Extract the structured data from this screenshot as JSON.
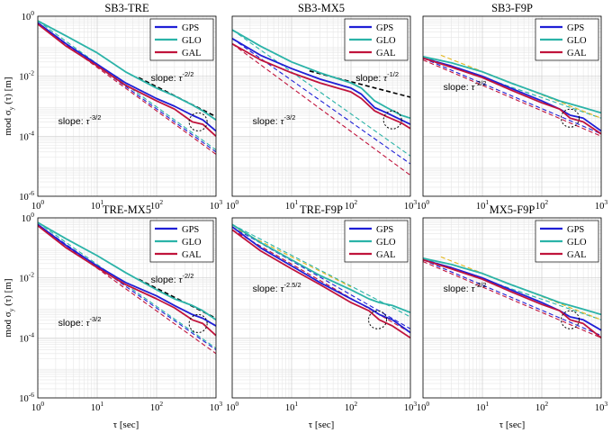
{
  "figure": {
    "tick_labels": {
      "base": "10",
      "y_exponents": [
        "0",
        "-2",
        "-4",
        "-6"
      ],
      "x_exponents": [
        "0",
        "1",
        "2",
        "3"
      ]
    },
    "ylabel": {
      "prefix": "mod ",
      "sigma": "σ",
      "sub": "y",
      "suffix": " (τ) [m]"
    },
    "xlabel": "τ [sec]",
    "legend": [
      "GPS",
      "GLO",
      "GAL"
    ],
    "colors": {
      "GPS": "#1f1fd6",
      "GLO": "#2bb3a8",
      "GAL": "#c0143c",
      "ref": "#e3b820",
      "slope_ref": "#000000"
    }
  },
  "chart_data": [
    {
      "type": "line",
      "title": "SB3-TRE",
      "xscale": "log",
      "yscale": "log",
      "xlim": [
        1,
        1000
      ],
      "ylim": [
        1e-06,
        1
      ],
      "grid": true,
      "legend_position": "top-right",
      "series": [
        {
          "name": "GPS",
          "x": [
            1,
            3,
            10,
            30,
            100,
            200,
            400,
            600,
            1000
          ],
          "y": [
            0.6,
            0.12,
            0.025,
            0.006,
            0.0018,
            0.001,
            0.0005,
            0.00035,
            0.00015
          ]
        },
        {
          "name": "GLO",
          "x": [
            1,
            3,
            10,
            30,
            100,
            200,
            400,
            600,
            1000
          ],
          "y": [
            0.7,
            0.22,
            0.06,
            0.014,
            0.004,
            0.0022,
            0.0011,
            0.0007,
            0.00035
          ]
        },
        {
          "name": "GAL",
          "x": [
            1,
            3,
            10,
            30,
            100,
            200,
            400,
            600,
            1000
          ],
          "y": [
            0.55,
            0.1,
            0.022,
            0.005,
            0.0015,
            0.0008,
            0.0003,
            0.00025,
            0.0001
          ]
        }
      ],
      "fits": [
        {
          "color": "GPS",
          "from": [
            1,
            0.6
          ],
          "to": [
            1000,
            3e-05
          ]
        },
        {
          "color": "GLO",
          "from": [
            1,
            0.7
          ],
          "to": [
            1000,
            3.5e-05
          ]
        },
        {
          "color": "GAL",
          "from": [
            1,
            0.55
          ],
          "to": [
            1000,
            2.5e-05
          ]
        },
        {
          "color": "slope_ref",
          "from": [
            50,
            0.009
          ],
          "to": [
            1000,
            0.00045
          ]
        }
      ],
      "annotations": [
        {
          "text": "slope: ",
          "base": "τ",
          "exp": "-2/2",
          "at": [
            80,
            0.007
          ]
        },
        {
          "text": "slope: ",
          "base": "τ",
          "exp": "-3/2",
          "at": [
            2.2,
            0.00025
          ]
        }
      ],
      "circle": [
        500,
        0.0003
      ]
    },
    {
      "type": "line",
      "title": "SB3-MX5",
      "xscale": "log",
      "yscale": "log",
      "xlim": [
        1,
        1000
      ],
      "ylim": [
        1e-06,
        1
      ],
      "grid": true,
      "legend_position": "top-right",
      "series": [
        {
          "name": "GPS",
          "x": [
            1,
            3,
            10,
            30,
            100,
            150,
            250,
            400,
            700,
            1000
          ],
          "y": [
            0.18,
            0.05,
            0.018,
            0.008,
            0.004,
            0.0025,
            0.0009,
            0.0006,
            0.00035,
            0.00025
          ]
        },
        {
          "name": "GLO",
          "x": [
            1,
            3,
            10,
            30,
            100,
            150,
            250,
            400,
            700,
            1000
          ],
          "y": [
            0.35,
            0.1,
            0.03,
            0.013,
            0.006,
            0.004,
            0.0015,
            0.0009,
            0.0005,
            0.0004
          ]
        },
        {
          "name": "GAL",
          "x": [
            1,
            3,
            10,
            30,
            100,
            150,
            250,
            400,
            700,
            1000
          ],
          "y": [
            0.12,
            0.035,
            0.013,
            0.006,
            0.003,
            0.0018,
            0.0007,
            0.00045,
            0.00028,
            0.00018
          ]
        }
      ],
      "fits": [
        {
          "color": "GPS",
          "from": [
            1,
            0.18
          ],
          "to": [
            1000,
            1.2e-05
          ]
        },
        {
          "color": "GLO",
          "from": [
            1,
            0.35
          ],
          "to": [
            1000,
            2.2e-05
          ]
        },
        {
          "color": "GAL",
          "from": [
            1,
            0.12
          ],
          "to": [
            1000,
            5e-06
          ]
        },
        {
          "color": "slope_ref",
          "from": [
            20,
            0.015
          ],
          "to": [
            1000,
            0.002
          ]
        }
      ],
      "annotations": [
        {
          "text": "slope: ",
          "base": "τ",
          "exp": "-1/2",
          "at": [
            120,
            0.007
          ]
        },
        {
          "text": "slope: ",
          "base": "τ",
          "exp": "-3/2",
          "at": [
            2.2,
            0.00025
          ]
        }
      ],
      "circle": [
        500,
        0.00035
      ]
    },
    {
      "type": "line",
      "title": "SB3-F9P",
      "xscale": "log",
      "yscale": "log",
      "xlim": [
        1,
        1000
      ],
      "ylim": [
        1e-06,
        1
      ],
      "grid": true,
      "legend_position": "top-right",
      "series": [
        {
          "name": "GPS",
          "x": [
            1,
            3,
            10,
            30,
            100,
            200,
            300,
            500,
            1000
          ],
          "y": [
            0.04,
            0.022,
            0.01,
            0.004,
            0.0015,
            0.0008,
            0.0005,
            0.0004,
            0.00015
          ]
        },
        {
          "name": "GLO",
          "x": [
            1,
            3,
            10,
            30,
            100,
            200,
            300,
            500,
            1000
          ],
          "y": [
            0.045,
            0.028,
            0.014,
            0.006,
            0.0025,
            0.0015,
            0.0012,
            0.0009,
            0.0006
          ]
        },
        {
          "name": "GAL",
          "x": [
            1,
            3,
            10,
            30,
            100,
            200,
            300,
            500,
            1000
          ],
          "y": [
            0.04,
            0.02,
            0.009,
            0.0035,
            0.0013,
            0.0008,
            0.0004,
            0.0003,
            0.00012
          ]
        }
      ],
      "fits": [
        {
          "color": "GPS",
          "from": [
            1,
            0.04
          ],
          "to": [
            1000,
            0.00012
          ]
        },
        {
          "color": "GLO",
          "from": [
            1,
            0.045
          ],
          "to": [
            1000,
            0.0004
          ]
        },
        {
          "color": "GAL",
          "from": [
            1,
            0.035
          ],
          "to": [
            1000,
            0.0001
          ]
        },
        {
          "color": "ref",
          "from": [
            2,
            0.05
          ],
          "to": [
            1000,
            0.0004
          ]
        }
      ],
      "annotations": [
        {
          "text": "slope: ",
          "base": "τ",
          "exp": "-2/2",
          "at": [
            2.2,
            0.0035
          ]
        }
      ],
      "circle": [
        300,
        0.0004
      ]
    },
    {
      "type": "line",
      "title": "TRE-MX5",
      "xscale": "log",
      "yscale": "log",
      "xlim": [
        1,
        1000
      ],
      "ylim": [
        1e-06,
        1
      ],
      "grid": true,
      "legend_position": "top-right",
      "series": [
        {
          "name": "GPS",
          "x": [
            1,
            3,
            10,
            30,
            100,
            200,
            400,
            600,
            1000
          ],
          "y": [
            0.6,
            0.12,
            0.025,
            0.007,
            0.0025,
            0.0012,
            0.0006,
            0.00045,
            0.00025
          ]
        },
        {
          "name": "GLO",
          "x": [
            1,
            3,
            10,
            30,
            100,
            200,
            400,
            600,
            1000
          ],
          "y": [
            0.7,
            0.2,
            0.055,
            0.015,
            0.004,
            0.002,
            0.0012,
            0.0008,
            0.0004
          ]
        },
        {
          "name": "GAL",
          "x": [
            1,
            3,
            10,
            30,
            100,
            200,
            400,
            600,
            1000
          ],
          "y": [
            0.55,
            0.1,
            0.022,
            0.006,
            0.002,
            0.001,
            0.0004,
            0.0003,
            0.00012
          ]
        }
      ],
      "fits": [
        {
          "color": "GPS",
          "from": [
            1,
            0.6
          ],
          "to": [
            1000,
            4e-05
          ]
        },
        {
          "color": "GLO",
          "from": [
            1,
            0.7
          ],
          "to": [
            1000,
            4.5e-05
          ]
        },
        {
          "color": "GAL",
          "from": [
            1,
            0.55
          ],
          "to": [
            1000,
            3e-05
          ]
        },
        {
          "color": "slope_ref",
          "from": [
            50,
            0.009
          ],
          "to": [
            1000,
            0.00045
          ]
        }
      ],
      "annotations": [
        {
          "text": "slope: ",
          "base": "τ",
          "exp": "-2/2",
          "at": [
            80,
            0.007
          ]
        },
        {
          "text": "slope: ",
          "base": "τ",
          "exp": "-3/2",
          "at": [
            2.2,
            0.00025
          ]
        }
      ],
      "circle": [
        500,
        0.0003
      ]
    },
    {
      "type": "line",
      "title": "TRE-F9P",
      "xscale": "log",
      "yscale": "log",
      "xlim": [
        1,
        1000
      ],
      "ylim": [
        1e-06,
        1
      ],
      "grid": true,
      "legend_position": "top-right",
      "series": [
        {
          "name": "GPS",
          "x": [
            1,
            3,
            10,
            30,
            100,
            200,
            300,
            500,
            1000
          ],
          "y": [
            0.5,
            0.1,
            0.025,
            0.007,
            0.002,
            0.001,
            0.0006,
            0.0004,
            0.00015
          ]
        },
        {
          "name": "GLO",
          "x": [
            1,
            3,
            10,
            30,
            100,
            200,
            300,
            500,
            1000
          ],
          "y": [
            0.6,
            0.15,
            0.04,
            0.012,
            0.004,
            0.002,
            0.0015,
            0.0012,
            0.0007
          ]
        },
        {
          "name": "GAL",
          "x": [
            1,
            3,
            10,
            30,
            100,
            200,
            300,
            500,
            1000
          ],
          "y": [
            0.4,
            0.08,
            0.02,
            0.006,
            0.0015,
            0.0008,
            0.0004,
            0.00025,
            0.0001
          ]
        }
      ],
      "fits": [
        {
          "color": "GPS",
          "from": [
            1,
            0.5
          ],
          "to": [
            1000,
            0.0002
          ]
        },
        {
          "color": "GLO",
          "from": [
            1,
            0.6
          ],
          "to": [
            1000,
            0.0005
          ]
        },
        {
          "color": "GAL",
          "from": [
            1,
            0.4
          ],
          "to": [
            1000,
            0.00015
          ]
        },
        {
          "color": "ref",
          "from": [
            1,
            0.5
          ],
          "to": [
            100,
            0.005
          ]
        }
      ],
      "annotations": [
        {
          "text": "slope: ",
          "base": "τ",
          "exp": "-2.5/2",
          "at": [
            2.2,
            0.0035
          ]
        }
      ],
      "circle": [
        280,
        0.0004
      ]
    },
    {
      "type": "line",
      "title": "MX5-F9P",
      "xscale": "log",
      "yscale": "log",
      "xlim": [
        1,
        1000
      ],
      "ylim": [
        1e-06,
        1
      ],
      "grid": true,
      "legend_position": "top-right",
      "series": [
        {
          "name": "GPS",
          "x": [
            1,
            3,
            10,
            30,
            100,
            200,
            300,
            500,
            1000
          ],
          "y": [
            0.04,
            0.022,
            0.01,
            0.004,
            0.0015,
            0.0008,
            0.0005,
            0.0004,
            0.00018
          ]
        },
        {
          "name": "GLO",
          "x": [
            1,
            3,
            10,
            30,
            100,
            200,
            300,
            500,
            1000
          ],
          "y": [
            0.045,
            0.028,
            0.014,
            0.006,
            0.0025,
            0.0015,
            0.0012,
            0.0009,
            0.0006
          ]
        },
        {
          "name": "GAL",
          "x": [
            1,
            3,
            10,
            30,
            100,
            200,
            300,
            500,
            1000
          ],
          "y": [
            0.04,
            0.02,
            0.009,
            0.0035,
            0.0013,
            0.0008,
            0.0004,
            0.0003,
            0.0001
          ]
        }
      ],
      "fits": [
        {
          "color": "GPS",
          "from": [
            1,
            0.04
          ],
          "to": [
            1000,
            0.00012
          ]
        },
        {
          "color": "GLO",
          "from": [
            1,
            0.045
          ],
          "to": [
            1000,
            0.0004
          ]
        },
        {
          "color": "GAL",
          "from": [
            1,
            0.035
          ],
          "to": [
            1000,
            0.0001
          ]
        },
        {
          "color": "ref",
          "from": [
            2,
            0.05
          ],
          "to": [
            1000,
            0.0004
          ]
        }
      ],
      "annotations": [
        {
          "text": "slope: ",
          "base": "τ",
          "exp": "-2/2",
          "at": [
            2.2,
            0.0035
          ]
        }
      ],
      "circle": [
        300,
        0.0004
      ]
    }
  ]
}
